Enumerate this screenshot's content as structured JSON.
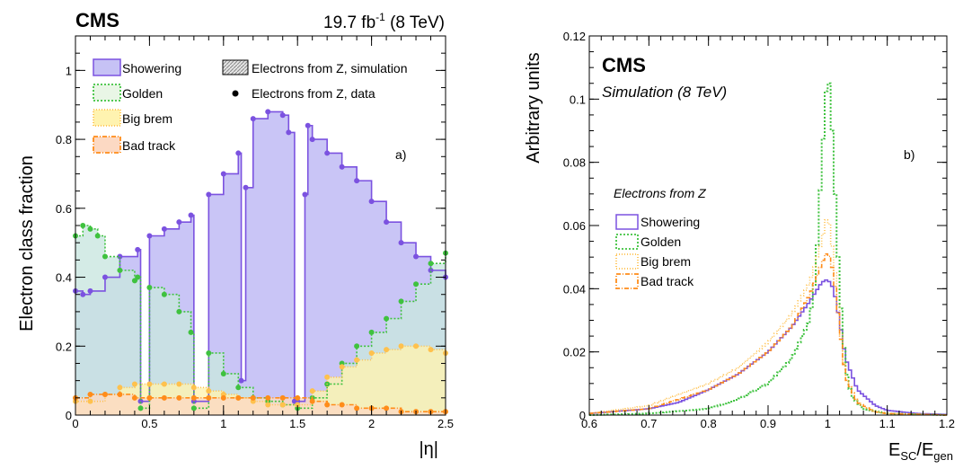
{
  "chart_data": [
    {
      "type": "line",
      "panel_label": "a)",
      "cms_label": "CMS",
      "lumi_label": "19.7 fb",
      "lumi_sup": "-1",
      "lumi_energy": " (8 TeV)",
      "xlabel": "|η|",
      "ylabel": "Electron class fraction",
      "xlim": [
        0,
        2.5
      ],
      "ylim": [
        0,
        1.1
      ],
      "xticks": [
        "0",
        "0.5",
        "1",
        "1.5",
        "2",
        "2.5"
      ],
      "yticks": [
        "0",
        "0.2",
        "0.4",
        "0.6",
        "0.8",
        "1"
      ],
      "legend_left": [
        "Showering",
        "Golden",
        "Big brem",
        "Bad track"
      ],
      "legend_right": [
        "Electrons from Z, simulation",
        "Electrons from Z, data"
      ],
      "colors": {
        "Showering": "#7b52e0",
        "Golden": "#3fc23f",
        "Big brem": "#ffc14d",
        "Bad track": "#ff8c1a"
      },
      "fills": {
        "Showering": "#c6c2f5",
        "Golden": "#c9e6e0",
        "Big brem": "#fff3b0",
        "Bad track": "#fcd9c3"
      },
      "series": [
        {
          "name": "Showering",
          "x": [
            0.0,
            0.05,
            0.1,
            0.2,
            0.3,
            0.42,
            0.44,
            0.5,
            0.6,
            0.7,
            0.78,
            0.8,
            0.9,
            1.0,
            1.1,
            1.12,
            1.15,
            1.2,
            1.3,
            1.4,
            1.44,
            1.48,
            1.5,
            1.55,
            1.57,
            1.6,
            1.7,
            1.8,
            1.9,
            2.0,
            2.1,
            2.2,
            2.3,
            2.4,
            2.5
          ],
          "y": [
            0.36,
            0.35,
            0.36,
            0.4,
            0.46,
            0.48,
            0.04,
            0.52,
            0.54,
            0.56,
            0.58,
            0.04,
            0.64,
            0.7,
            0.76,
            0.1,
            0.66,
            0.86,
            0.88,
            0.87,
            0.82,
            0.04,
            0.04,
            0.64,
            0.84,
            0.8,
            0.76,
            0.72,
            0.68,
            0.62,
            0.56,
            0.5,
            0.46,
            0.42,
            0.4
          ]
        },
        {
          "name": "Golden",
          "x": [
            0.0,
            0.05,
            0.1,
            0.15,
            0.2,
            0.3,
            0.4,
            0.42,
            0.44,
            0.5,
            0.6,
            0.7,
            0.78,
            0.8,
            0.9,
            1.0,
            1.1,
            1.2,
            1.3,
            1.4,
            1.5,
            1.6,
            1.7,
            1.8,
            1.9,
            2.0,
            2.1,
            2.2,
            2.3,
            2.4,
            2.5
          ],
          "y": [
            0.52,
            0.55,
            0.54,
            0.52,
            0.46,
            0.42,
            0.39,
            0.4,
            0.02,
            0.37,
            0.35,
            0.3,
            0.24,
            0.02,
            0.18,
            0.12,
            0.08,
            0.05,
            0.04,
            0.03,
            0.02,
            0.05,
            0.09,
            0.15,
            0.2,
            0.24,
            0.28,
            0.33,
            0.38,
            0.44,
            0.47
          ]
        },
        {
          "name": "Big brem",
          "x": [
            0.0,
            0.1,
            0.2,
            0.3,
            0.4,
            0.5,
            0.6,
            0.7,
            0.8,
            0.9,
            1.0,
            1.1,
            1.2,
            1.3,
            1.4,
            1.5,
            1.6,
            1.7,
            1.8,
            1.9,
            2.0,
            2.1,
            2.2,
            2.3,
            2.4,
            2.5
          ],
          "y": [
            0.04,
            0.04,
            0.06,
            0.08,
            0.09,
            0.09,
            0.09,
            0.09,
            0.08,
            0.07,
            0.06,
            0.05,
            0.04,
            0.03,
            0.03,
            0.03,
            0.07,
            0.11,
            0.14,
            0.16,
            0.18,
            0.19,
            0.2,
            0.2,
            0.19,
            0.18
          ]
        },
        {
          "name": "Bad track",
          "x": [
            0.0,
            0.1,
            0.2,
            0.3,
            0.4,
            0.5,
            0.6,
            0.7,
            0.8,
            0.9,
            1.0,
            1.1,
            1.2,
            1.3,
            1.4,
            1.5,
            1.6,
            1.7,
            1.8,
            1.9,
            2.0,
            2.1,
            2.2,
            2.3,
            2.4,
            2.5
          ],
          "y": [
            0.05,
            0.06,
            0.06,
            0.06,
            0.05,
            0.05,
            0.05,
            0.05,
            0.05,
            0.05,
            0.05,
            0.05,
            0.05,
            0.05,
            0.05,
            0.05,
            0.04,
            0.03,
            0.03,
            0.02,
            0.02,
            0.02,
            0.01,
            0.01,
            0.01,
            0.01
          ]
        }
      ]
    },
    {
      "type": "line",
      "panel_label": "b)",
      "cms_label": "CMS",
      "sim_label": "Simulation (8 TeV)",
      "legend_title": "Electrons from Z",
      "xlabel_main": "E",
      "xlabel_sub1": "SC",
      "xlabel_mid": "/E",
      "xlabel_sub2": "gen",
      "ylabel": "Arbitrary units",
      "xlim": [
        0.6,
        1.2
      ],
      "ylim": [
        0,
        0.12
      ],
      "xticks": [
        "0.6",
        "0.7",
        "0.8",
        "0.9",
        "1",
        "1.1",
        "1.2"
      ],
      "yticks": [
        "0",
        "0.02",
        "0.04",
        "0.06",
        "0.08",
        "0.1",
        "0.12"
      ],
      "legend": [
        "Showering",
        "Golden",
        "Big brem",
        "Bad track"
      ],
      "colors": {
        "Showering": "#7b52e0",
        "Golden": "#3fc23f",
        "Big brem": "#ffc14d",
        "Bad track": "#ff8c1a"
      },
      "series": [
        {
          "name": "Showering",
          "x": [
            0.6,
            0.7,
            0.75,
            0.8,
            0.85,
            0.9,
            0.94,
            0.97,
            0.99,
            1.0,
            1.01,
            1.02,
            1.03,
            1.05,
            1.08,
            1.1,
            1.15,
            1.2
          ],
          "y": [
            0.0005,
            0.002,
            0.004,
            0.008,
            0.013,
            0.02,
            0.028,
            0.036,
            0.042,
            0.043,
            0.04,
            0.03,
            0.018,
            0.008,
            0.003,
            0.0015,
            0.0005,
            0.0002
          ]
        },
        {
          "name": "Golden",
          "x": [
            0.6,
            0.7,
            0.8,
            0.85,
            0.9,
            0.94,
            0.97,
            0.98,
            0.99,
            1.0,
            1.005,
            1.01,
            1.02,
            1.03,
            1.04,
            1.06,
            1.1,
            1.2
          ],
          "y": [
            0.0,
            0.0005,
            0.002,
            0.005,
            0.01,
            0.018,
            0.03,
            0.045,
            0.08,
            0.11,
            0.1,
            0.08,
            0.04,
            0.015,
            0.006,
            0.002,
            0.0005,
            0.0
          ]
        },
        {
          "name": "Big brem",
          "x": [
            0.6,
            0.7,
            0.8,
            0.85,
            0.9,
            0.94,
            0.97,
            0.99,
            1.0,
            1.01,
            1.02,
            1.03,
            1.05,
            1.08,
            1.1,
            1.2
          ],
          "y": [
            0.0005,
            0.003,
            0.01,
            0.015,
            0.023,
            0.032,
            0.042,
            0.055,
            0.064,
            0.05,
            0.03,
            0.012,
            0.004,
            0.001,
            0.0005,
            0.0
          ]
        },
        {
          "name": "Bad track",
          "x": [
            0.6,
            0.7,
            0.8,
            0.85,
            0.9,
            0.94,
            0.97,
            0.99,
            1.0,
            1.01,
            1.02,
            1.03,
            1.05,
            1.08,
            1.1,
            1.2
          ],
          "y": [
            0.0005,
            0.002,
            0.008,
            0.013,
            0.02,
            0.028,
            0.038,
            0.048,
            0.052,
            0.045,
            0.028,
            0.012,
            0.004,
            0.001,
            0.0005,
            0.0
          ]
        }
      ]
    }
  ]
}
